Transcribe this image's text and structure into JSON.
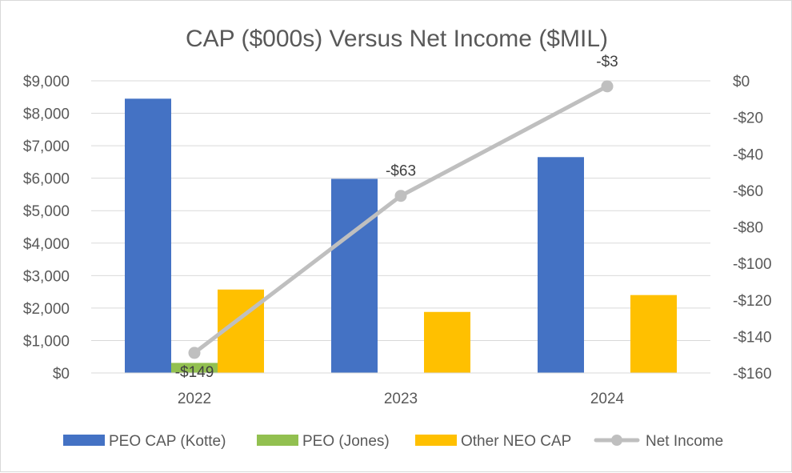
{
  "chart_data": {
    "type": "bar",
    "title": "CAP ($000s) Versus Net Income ($MIL)",
    "categories": [
      "2022",
      "2023",
      "2024"
    ],
    "y_left": {
      "range": [
        0,
        9000
      ],
      "ticks": [
        0,
        1000,
        2000,
        3000,
        4000,
        5000,
        6000,
        7000,
        8000,
        9000
      ],
      "tick_labels": [
        "$0",
        "$1,000",
        "$2,000",
        "$3,000",
        "$4,000",
        "$5,000",
        "$6,000",
        "$7,000",
        "$8,000",
        "$9,000"
      ]
    },
    "y_right": {
      "range": [
        -160,
        0
      ],
      "ticks": [
        0,
        -20,
        -40,
        -60,
        -80,
        -100,
        -120,
        -140,
        -160
      ],
      "tick_labels": [
        "$0",
        "-$20",
        "-$40",
        "-$60",
        "-$80",
        "-$100",
        "-$120",
        "-$140",
        "-$160"
      ]
    },
    "grid": true,
    "legend_position": "bottom",
    "series": [
      {
        "name": "PEO CAP (Kotte)",
        "type": "bar",
        "axis": "left",
        "color": "#4472c4",
        "values": [
          8450,
          5980,
          6650
        ]
      },
      {
        "name": "PEO (Jones)",
        "type": "bar",
        "axis": "left",
        "color": "#92c050",
        "values": [
          310,
          0,
          0
        ]
      },
      {
        "name": "Other NEO CAP",
        "type": "bar",
        "axis": "left",
        "color": "#ffc000",
        "values": [
          2570,
          1880,
          2400
        ]
      },
      {
        "name": "Net Income",
        "type": "line",
        "axis": "right",
        "color": "#bfbfbf",
        "values": [
          -149,
          -63,
          -3
        ],
        "data_labels": [
          "-$149",
          "-$63",
          "-$3"
        ]
      }
    ]
  }
}
